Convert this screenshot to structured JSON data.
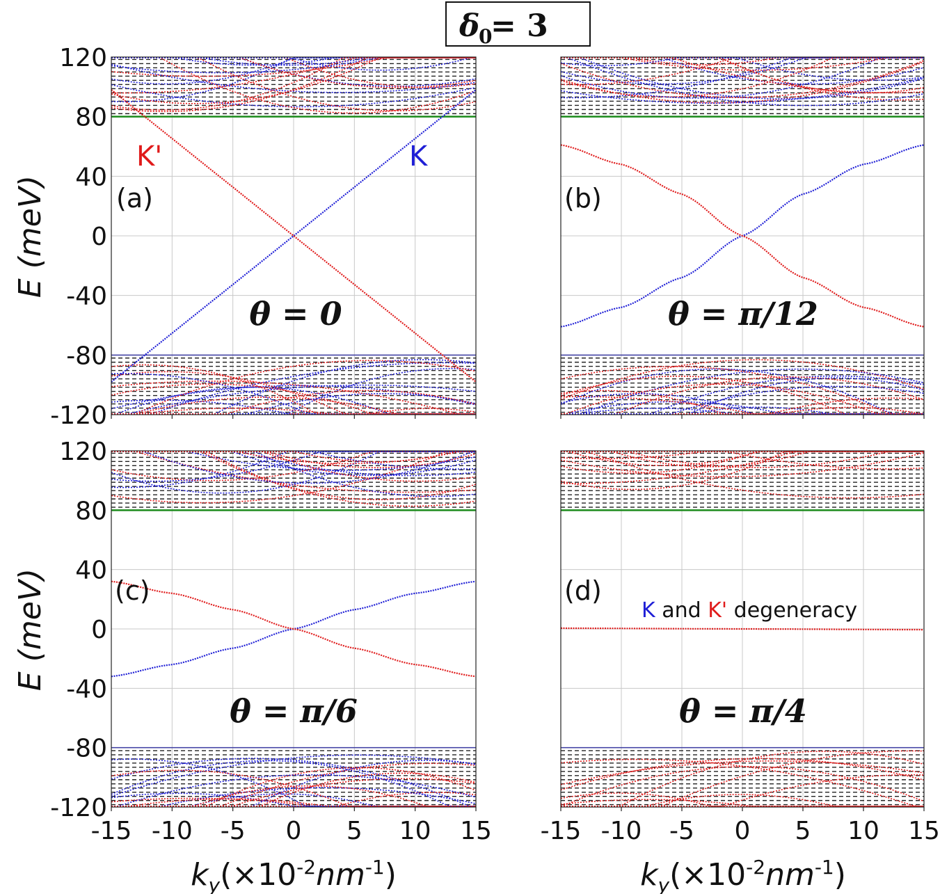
{
  "header": {
    "delta_sym": "δ",
    "delta_sub": "0",
    "delta_eq": " = 3"
  },
  "axes": {
    "ylabel_main": "E",
    "ylabel_unit": "(meV)",
    "xlabel_k": "k",
    "xlabel_sub": "y",
    "xlabel_open": "(×10",
    "xlabel_exp": "-2",
    "xlabel_unit": "nm",
    "xlabel_exp2": "-1",
    "xlabel_close": ")"
  },
  "chart_data": [
    {
      "type": "line",
      "panel": "(a)",
      "theta_label": "θ = 0",
      "xlim": [
        -15,
        15
      ],
      "ylim": [
        -120,
        120
      ],
      "xticks": [
        "-15",
        "-10",
        "-5",
        "0",
        "5",
        "10",
        "15"
      ],
      "yticks": [
        "120",
        "80",
        "40",
        "0",
        "-40",
        "-80",
        "-120"
      ],
      "band_edges": [
        80,
        -80
      ],
      "series": [
        {
          "name": "K",
          "color": "#1f1fd6",
          "x": [
            -15,
            15
          ],
          "y": [
            -98,
            98
          ]
        },
        {
          "name": "K'",
          "color": "#e01b1b",
          "x": [
            -15,
            15
          ],
          "y": [
            98,
            -98
          ]
        }
      ],
      "annotations": [
        "K'",
        "K"
      ]
    },
    {
      "type": "line",
      "panel": "(b)",
      "theta_label": "θ = π/12",
      "xlim": [
        -15,
        15
      ],
      "ylim": [
        -120,
        120
      ],
      "xticks": [
        "-15",
        "-10",
        "-5",
        "0",
        "5",
        "10",
        "15"
      ],
      "band_edges": [
        80,
        -80
      ],
      "series": [
        {
          "name": "K",
          "color": "#1f1fd6",
          "x": [
            -15,
            -10,
            -5,
            0,
            5,
            10,
            15
          ],
          "y": [
            -61,
            -48,
            -28,
            0,
            28,
            48,
            61
          ]
        },
        {
          "name": "K'",
          "color": "#e01b1b",
          "x": [
            -15,
            -10,
            -5,
            0,
            5,
            10,
            15
          ],
          "y": [
            61,
            48,
            28,
            0,
            -28,
            -48,
            -61
          ]
        }
      ]
    },
    {
      "type": "line",
      "panel": "(c)",
      "theta_label": "θ = π/6",
      "xlim": [
        -15,
        15
      ],
      "ylim": [
        -120,
        120
      ],
      "xticks": [
        "-15",
        "-10",
        "-5",
        "0",
        "5",
        "10",
        "15"
      ],
      "yticks": [
        "120",
        "80",
        "40",
        "0",
        "-40",
        "-80",
        "-120"
      ],
      "band_edges": [
        80,
        -80
      ],
      "series": [
        {
          "name": "K",
          "color": "#1f1fd6",
          "x": [
            -15,
            -10,
            -5,
            0,
            5,
            10,
            15
          ],
          "y": [
            -32,
            -24,
            -13,
            0,
            13,
            24,
            32
          ]
        },
        {
          "name": "K'",
          "color": "#e01b1b",
          "x": [
            -15,
            -10,
            -5,
            0,
            5,
            10,
            15
          ],
          "y": [
            32,
            24,
            13,
            0,
            -13,
            -24,
            -32
          ]
        }
      ]
    },
    {
      "type": "line",
      "panel": "(d)",
      "theta_label": "θ = π/4",
      "xlim": [
        -15,
        15
      ],
      "ylim": [
        -120,
        120
      ],
      "xticks": [
        "-15",
        "-10",
        "-5",
        "0",
        "5",
        "10",
        "15"
      ],
      "band_edges": [
        80,
        -80
      ],
      "series": [
        {
          "name": "K and K' (degenerate)",
          "color": "#e01b1b",
          "x": [
            -15,
            0,
            15
          ],
          "y": [
            0.5,
            0,
            -0.5
          ]
        }
      ],
      "legend": {
        "k": "K",
        "and": "and",
        "kp": "K'",
        "rest": "degeneracy"
      }
    }
  ]
}
